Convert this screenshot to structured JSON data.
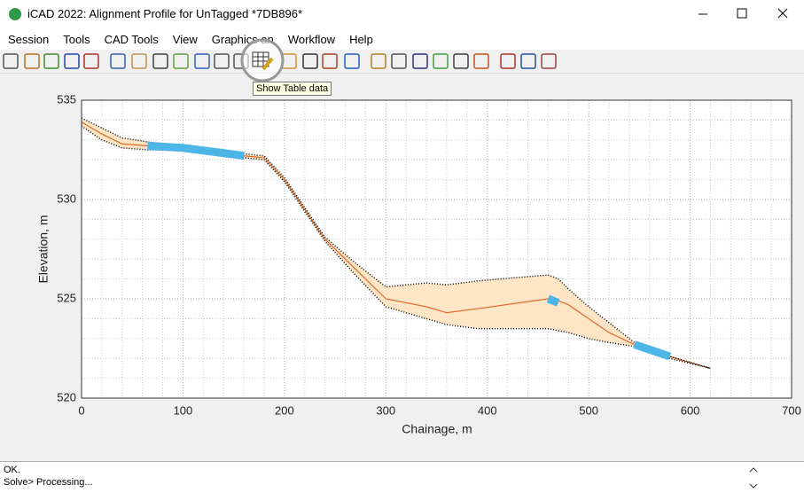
{
  "window": {
    "title": "iCAD 2022: Alignment Profile for UnTagged *7DB896*"
  },
  "menu": [
    "Session",
    "Tools",
    "CAD Tools",
    "View",
    "Graphics an",
    "Workflow",
    "Help"
  ],
  "tooltip": "Show Table data",
  "status": [
    "OK.",
    "Solve> Processing..."
  ],
  "chart_data": {
    "type": "line",
    "x_label": "Chainage, m",
    "y_label": "Elevation, m",
    "x": [
      0,
      20,
      40,
      65,
      100,
      160,
      180,
      200,
      220,
      240,
      270,
      300,
      340,
      360,
      390,
      460,
      470,
      480,
      500,
      520,
      545,
      580,
      620
    ],
    "series": [
      {
        "style": "solid",
        "color": "#e0692a",
        "values": [
          533.9,
          533.3,
          532.8,
          532.7,
          532.6,
          532.2,
          532.1,
          531.0,
          529.5,
          528.0,
          526.5,
          525.0,
          524.6,
          524.3,
          524.5,
          525.0,
          524.9,
          524.7,
          524.0,
          523.3,
          522.7,
          522.1,
          521.5
        ]
      },
      {
        "style": "dotted",
        "color": "#000000",
        "values": [
          534.1,
          533.6,
          533.1,
          532.9,
          532.7,
          532.3,
          532.2,
          531.1,
          529.6,
          528.1,
          526.8,
          525.6,
          525.8,
          525.7,
          525.9,
          526.2,
          526.0,
          525.5,
          524.6,
          523.8,
          522.8,
          522.1,
          521.5
        ]
      },
      {
        "style": "dotted",
        "color": "#000000",
        "values": [
          533.7,
          533.0,
          532.6,
          532.5,
          532.5,
          532.1,
          532.0,
          530.9,
          529.4,
          527.9,
          526.2,
          524.6,
          524.0,
          523.7,
          523.5,
          523.5,
          523.4,
          523.3,
          523.0,
          522.8,
          522.6,
          522.0,
          521.5
        ]
      },
      {
        "style": "thick",
        "color": "#4db6e6",
        "values": [
          null,
          null,
          null,
          532.7,
          532.6,
          532.2,
          null,
          null,
          null,
          null,
          null,
          null,
          null,
          null,
          null,
          525.0,
          524.8,
          null,
          null,
          null,
          522.7,
          522.1,
          null
        ]
      }
    ],
    "band_fill": "#fde5c6",
    "xlim": [
      0,
      700
    ],
    "ylim": [
      520,
      535
    ],
    "xticks": [
      0,
      100,
      200,
      300,
      400,
      500,
      600,
      700
    ],
    "yticks": [
      520,
      525,
      530,
      535
    ],
    "grid": true,
    "minor_grid": true
  }
}
